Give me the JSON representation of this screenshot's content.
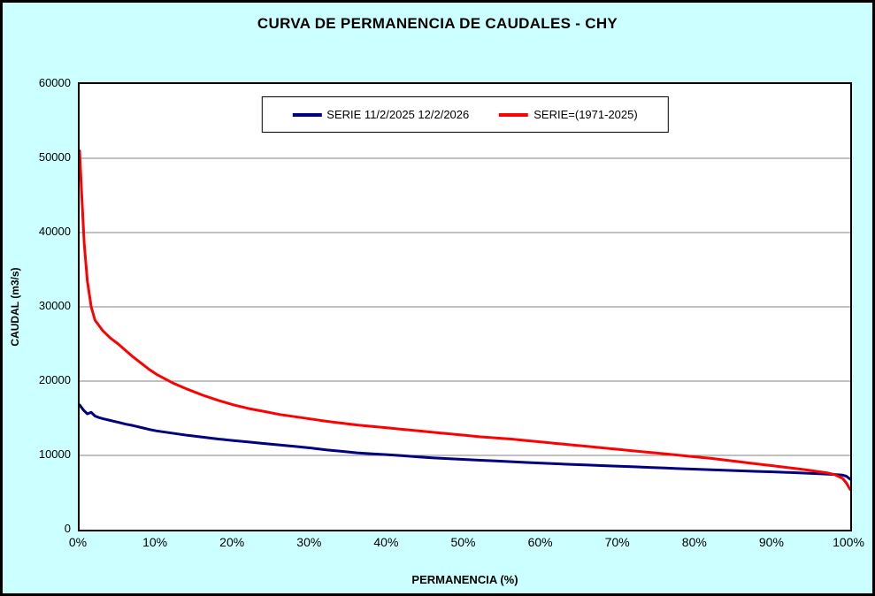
{
  "chart_data": {
    "type": "line",
    "title": "CURVA DE PERMANENCIA DE CAUDALES - CHY",
    "xlabel": "PERMANENCIA (%)",
    "ylabel": "CAUDAL (m3/s)",
    "xlim": [
      0,
      100
    ],
    "ylim": [
      0,
      60000
    ],
    "x_ticks": [
      0,
      10,
      20,
      30,
      40,
      50,
      60,
      70,
      80,
      90,
      100
    ],
    "x_tick_labels": [
      "0%",
      "10%",
      "20%",
      "30%",
      "40%",
      "50%",
      "60%",
      "70%",
      "80%",
      "90%",
      "100%"
    ],
    "y_ticks": [
      0,
      10000,
      20000,
      30000,
      40000,
      50000,
      60000
    ],
    "grid": "horizontal",
    "legend_position": "top-center",
    "series": [
      {
        "name": "SERIE 11/2/2025 12/2/2026",
        "color": "#000080",
        "points": [
          [
            0,
            16800
          ],
          [
            0.5,
            16100
          ],
          [
            1,
            15600
          ],
          [
            1.5,
            15800
          ],
          [
            2,
            15300
          ],
          [
            2.5,
            15100
          ],
          [
            3,
            14950
          ],
          [
            4,
            14700
          ],
          [
            5,
            14450
          ],
          [
            6,
            14200
          ],
          [
            7,
            14000
          ],
          [
            8,
            13750
          ],
          [
            9,
            13500
          ],
          [
            10,
            13300
          ],
          [
            12,
            13000
          ],
          [
            14,
            12700
          ],
          [
            16,
            12450
          ],
          [
            18,
            12200
          ],
          [
            20,
            12000
          ],
          [
            22,
            11800
          ],
          [
            24,
            11600
          ],
          [
            26,
            11400
          ],
          [
            28,
            11200
          ],
          [
            30,
            11000
          ],
          [
            32,
            10750
          ],
          [
            34,
            10550
          ],
          [
            36,
            10350
          ],
          [
            38,
            10200
          ],
          [
            40,
            10100
          ],
          [
            42,
            9950
          ],
          [
            44,
            9800
          ],
          [
            46,
            9650
          ],
          [
            48,
            9550
          ],
          [
            50,
            9450
          ],
          [
            52,
            9350
          ],
          [
            54,
            9250
          ],
          [
            56,
            9150
          ],
          [
            58,
            9050
          ],
          [
            60,
            8950
          ],
          [
            62,
            8870
          ],
          [
            64,
            8790
          ],
          [
            66,
            8700
          ],
          [
            68,
            8620
          ],
          [
            70,
            8540
          ],
          [
            72,
            8460
          ],
          [
            74,
            8380
          ],
          [
            76,
            8300
          ],
          [
            78,
            8220
          ],
          [
            80,
            8140
          ],
          [
            82,
            8060
          ],
          [
            84,
            7990
          ],
          [
            86,
            7920
          ],
          [
            88,
            7850
          ],
          [
            90,
            7780
          ],
          [
            92,
            7700
          ],
          [
            94,
            7620
          ],
          [
            96,
            7530
          ],
          [
            98,
            7430
          ],
          [
            99,
            7350
          ],
          [
            99.5,
            7200
          ],
          [
            100,
            6800
          ]
        ]
      },
      {
        "name": "SERIE=(1971-2025)",
        "color": "#FF0000",
        "points": [
          [
            0,
            51000
          ],
          [
            0.3,
            44500
          ],
          [
            0.6,
            38500
          ],
          [
            1,
            33500
          ],
          [
            1.5,
            30000
          ],
          [
            2,
            28200
          ],
          [
            3,
            26800
          ],
          [
            4,
            25800
          ],
          [
            5,
            25000
          ],
          [
            6,
            24100
          ],
          [
            7,
            23200
          ],
          [
            8,
            22400
          ],
          [
            9,
            21600
          ],
          [
            10,
            20900
          ],
          [
            12,
            19800
          ],
          [
            14,
            18900
          ],
          [
            16,
            18100
          ],
          [
            18,
            17400
          ],
          [
            20,
            16800
          ],
          [
            22,
            16300
          ],
          [
            24,
            15900
          ],
          [
            26,
            15500
          ],
          [
            28,
            15200
          ],
          [
            30,
            14900
          ],
          [
            32,
            14600
          ],
          [
            34,
            14350
          ],
          [
            36,
            14100
          ],
          [
            38,
            13900
          ],
          [
            40,
            13700
          ],
          [
            42,
            13500
          ],
          [
            44,
            13300
          ],
          [
            46,
            13100
          ],
          [
            48,
            12900
          ],
          [
            50,
            12700
          ],
          [
            52,
            12500
          ],
          [
            54,
            12350
          ],
          [
            56,
            12200
          ],
          [
            58,
            12000
          ],
          [
            60,
            11800
          ],
          [
            62,
            11600
          ],
          [
            64,
            11400
          ],
          [
            66,
            11200
          ],
          [
            68,
            11000
          ],
          [
            70,
            10800
          ],
          [
            72,
            10600
          ],
          [
            74,
            10400
          ],
          [
            76,
            10200
          ],
          [
            78,
            10000
          ],
          [
            80,
            9800
          ],
          [
            82,
            9600
          ],
          [
            84,
            9350
          ],
          [
            86,
            9100
          ],
          [
            88,
            8850
          ],
          [
            90,
            8600
          ],
          [
            92,
            8350
          ],
          [
            94,
            8100
          ],
          [
            96,
            7800
          ],
          [
            97,
            7650
          ],
          [
            98,
            7400
          ],
          [
            99,
            6900
          ],
          [
            99.5,
            6300
          ],
          [
            100,
            5400
          ]
        ]
      }
    ]
  },
  "colors": {
    "background": "#CCFFFF",
    "plot_background": "#FFFFFF",
    "grid": "#808080",
    "axis": "#000000",
    "series1": "#000080",
    "series2": "#FF0000"
  }
}
